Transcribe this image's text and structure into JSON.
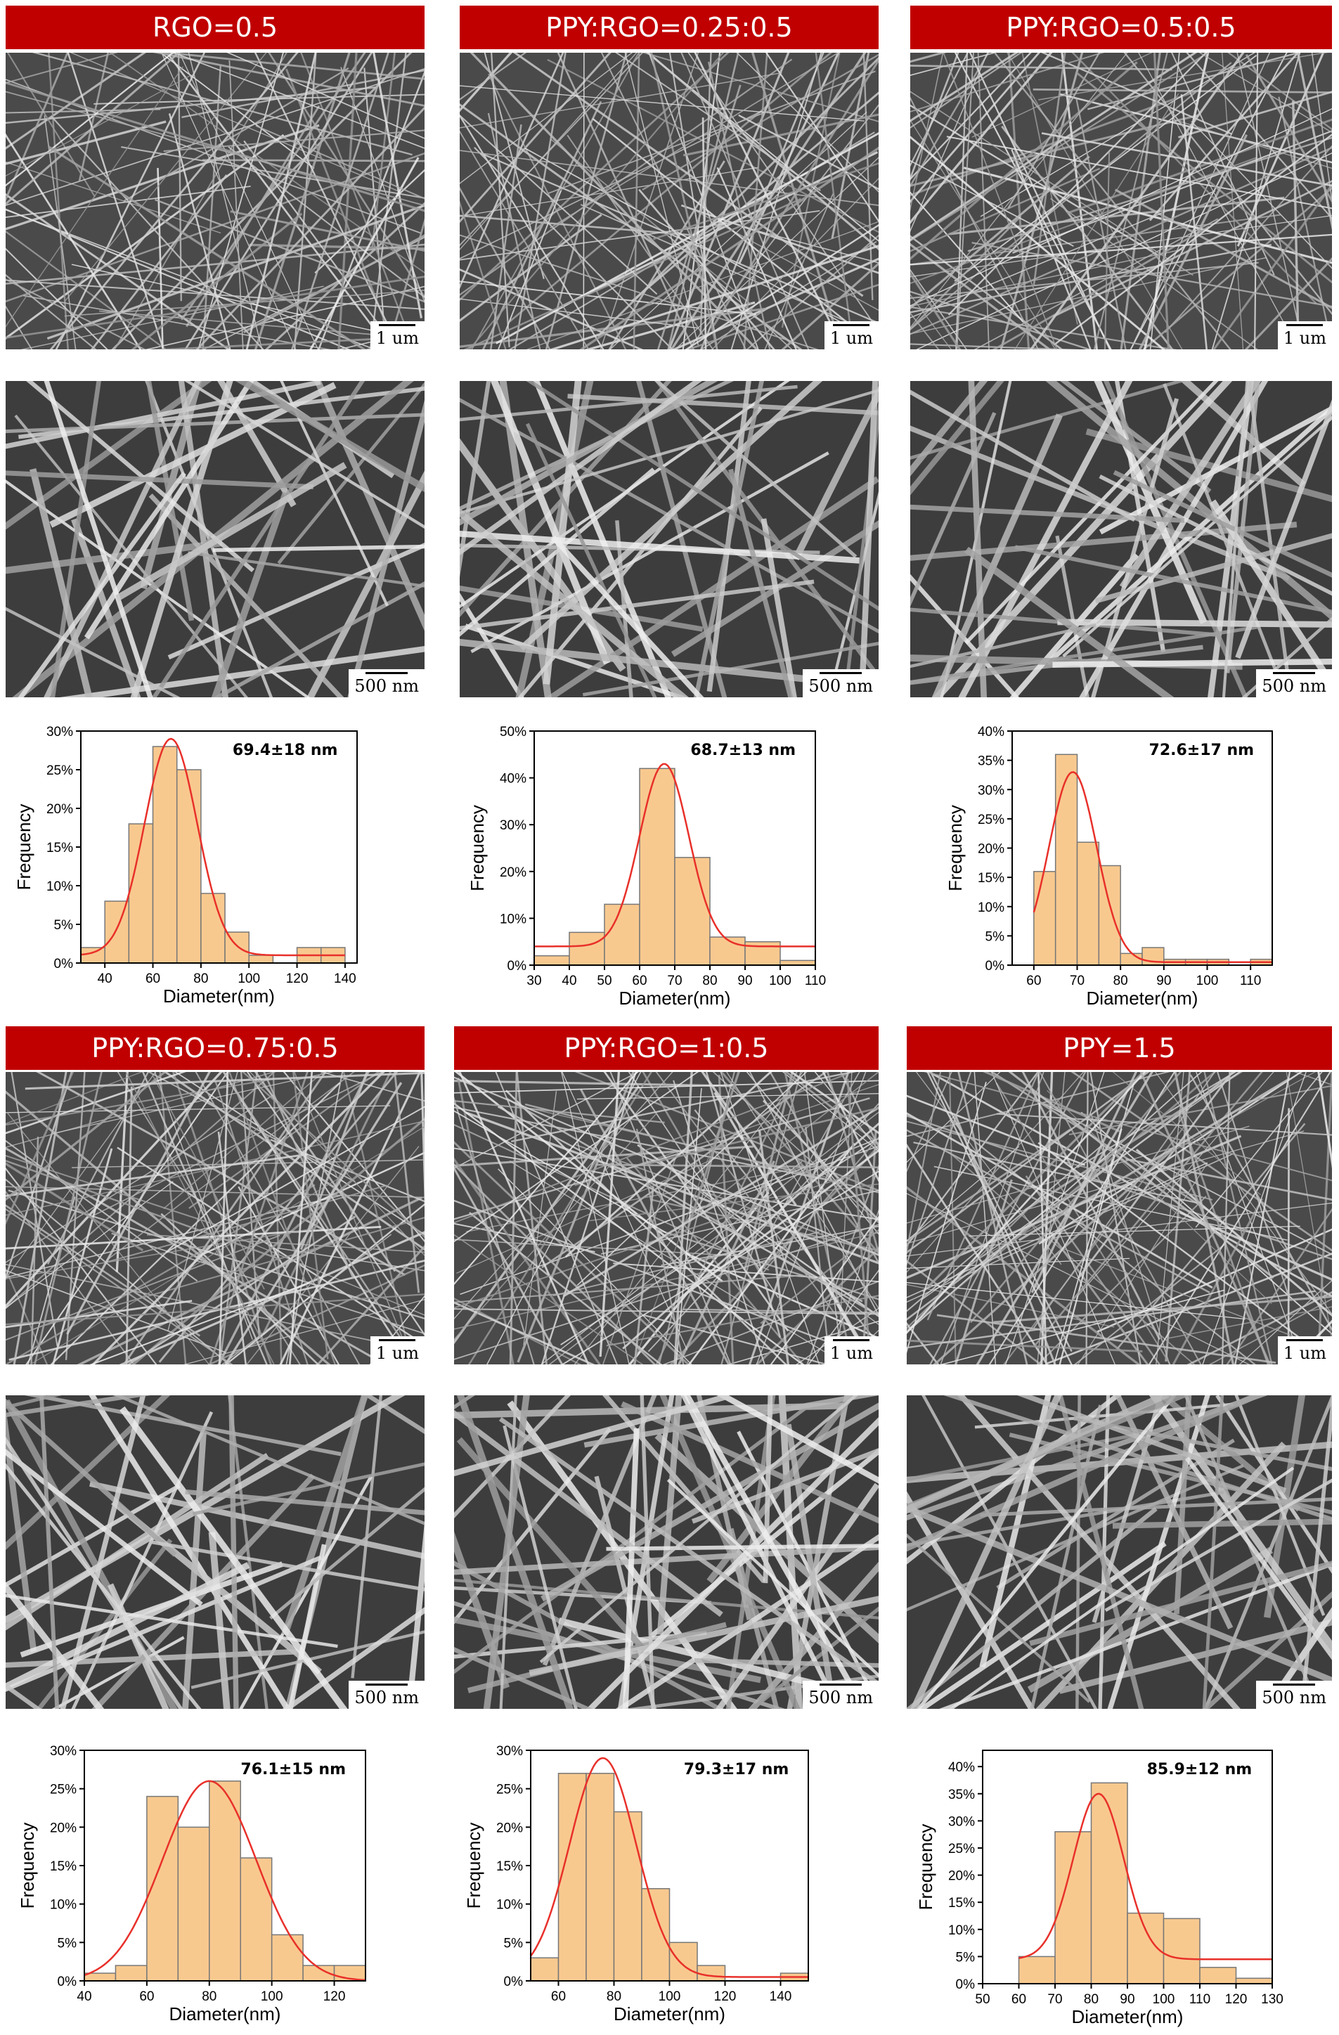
{
  "colors": {
    "title_bar": "#c00000",
    "bar_fill": "#f8c98f",
    "bar_stroke": "#777777",
    "fit_curve": "#e8302a"
  },
  "panels": [
    {
      "title": "RGO=0.5",
      "scale_top": "1 um",
      "scale_bottom": "500 nm",
      "density": 110,
      "seed": 11
    },
    {
      "title": "PPY:RGO=0.25:0.5",
      "scale_top": "1 um",
      "scale_bottom": "500 nm",
      "density": 120,
      "seed": 23
    },
    {
      "title": "PPY:RGO=0.5:0.5",
      "scale_top": "1 um",
      "scale_bottom": "500 nm",
      "density": 130,
      "seed": 37
    },
    {
      "title": "PPY:RGO=0.75:0.5",
      "scale_top": "1 um",
      "scale_bottom": "500 nm",
      "density": 130,
      "seed": 41
    },
    {
      "title": "PPY:RGO=1:0.5",
      "scale_top": "1 um",
      "scale_bottom": "500 nm",
      "density": 160,
      "seed": 53
    },
    {
      "title": "PPY=1.5",
      "scale_top": "1 um",
      "scale_bottom": "500 nm",
      "density": 140,
      "seed": 67
    }
  ],
  "chart_data": [
    {
      "type": "bar",
      "annotation": "69.4±18 nm",
      "xlabel": "Diameter(nm)",
      "ylabel": "Frequency",
      "xlim": [
        30,
        145
      ],
      "xticks": [
        40,
        60,
        80,
        100,
        120,
        140
      ],
      "ylim": [
        0,
        0.3
      ],
      "yticks": [
        "0%",
        "5%",
        "10%",
        "15%",
        "20%",
        "25%",
        "30%"
      ],
      "bin_width": 10,
      "x": [
        35,
        45,
        55,
        65,
        75,
        85,
        95,
        105,
        115,
        125,
        135
      ],
      "values": [
        0.02,
        0.08,
        0.18,
        0.28,
        0.25,
        0.09,
        0.04,
        0.01,
        0.0,
        0.02,
        0.02
      ],
      "fit": {
        "mean": 67.5,
        "sigma": 11,
        "peak": 0.29,
        "baseline": 0.01
      }
    },
    {
      "type": "bar",
      "annotation": "68.7±13 nm",
      "xlabel": "Diameter(nm)",
      "ylabel": "Frequency",
      "xlim": [
        30,
        110
      ],
      "xticks": [
        30,
        40,
        50,
        60,
        70,
        80,
        90,
        100,
        110
      ],
      "ylim": [
        0,
        0.5
      ],
      "yticks": [
        "0%",
        "10%",
        "20%",
        "30%",
        "40%",
        "50%"
      ],
      "bin_width": 10,
      "x": [
        35,
        45,
        55,
        65,
        75,
        85,
        95,
        105
      ],
      "values": [
        0.02,
        0.07,
        0.13,
        0.42,
        0.23,
        0.06,
        0.05,
        0.01
      ],
      "fit": {
        "mean": 67,
        "sigma": 7,
        "peak": 0.43,
        "baseline": 0.04
      }
    },
    {
      "type": "bar",
      "annotation": "72.6±17 nm",
      "xlabel": "Diameter(nm)",
      "ylabel": "Frequency",
      "xlim": [
        55,
        115
      ],
      "xticks": [
        60,
        70,
        80,
        90,
        100,
        110
      ],
      "ylim": [
        0,
        0.4
      ],
      "yticks": [
        "0%",
        "5%",
        "10%",
        "15%",
        "20%",
        "25%",
        "30%",
        "35%",
        "40%"
      ],
      "bin_width": 5,
      "x": [
        62.5,
        67.5,
        72.5,
        77.5,
        82.5,
        87.5,
        92.5,
        97.5,
        102.5,
        107.5,
        112.5
      ],
      "values": [
        0.16,
        0.36,
        0.21,
        0.17,
        0.02,
        0.03,
        0.01,
        0.01,
        0.01,
        0.0,
        0.01
      ],
      "fit": {
        "mean": 69,
        "sigma": 5.5,
        "peak": 0.33,
        "baseline": 0.005
      }
    },
    {
      "type": "bar",
      "annotation": "76.1±15 nm",
      "xlabel": "Diameter(nm)",
      "ylabel": "Frequency",
      "xlim": [
        40,
        130
      ],
      "xticks": [
        40,
        60,
        80,
        100,
        120
      ],
      "ylim": [
        0,
        0.3
      ],
      "yticks": [
        "0%",
        "5%",
        "10%",
        "15%",
        "20%",
        "25%",
        "30%"
      ],
      "bin_width": 10,
      "x": [
        45,
        55,
        65,
        75,
        85,
        95,
        105,
        115,
        125
      ],
      "values": [
        0.01,
        0.02,
        0.24,
        0.2,
        0.26,
        0.16,
        0.06,
        0.02,
        0.02
      ],
      "fit": {
        "mean": 80,
        "sigma": 15,
        "peak": 0.26,
        "baseline": 0.0
      }
    },
    {
      "type": "bar",
      "annotation": "79.3±17 nm",
      "xlabel": "Diameter(nm)",
      "ylabel": "Frequency",
      "xlim": [
        50,
        150
      ],
      "xticks": [
        60,
        80,
        100,
        120,
        140
      ],
      "ylim": [
        0,
        0.3
      ],
      "yticks": [
        "0%",
        "5%",
        "10%",
        "15%",
        "20%",
        "25%",
        "30%"
      ],
      "bin_width": 10,
      "x": [
        55,
        65,
        75,
        85,
        95,
        105,
        115,
        125,
        135,
        145
      ],
      "values": [
        0.03,
        0.27,
        0.27,
        0.22,
        0.12,
        0.05,
        0.02,
        0.0,
        0.0,
        0.01
      ],
      "fit": {
        "mean": 76,
        "sigma": 12,
        "peak": 0.29,
        "baseline": 0.005
      }
    },
    {
      "type": "bar",
      "annotation": "85.9±12 nm",
      "xlabel": "Diameter(nm)",
      "ylabel": "Frequency",
      "xlim": [
        50,
        130
      ],
      "xticks": [
        50,
        60,
        70,
        80,
        90,
        100,
        110,
        120,
        130
      ],
      "ylim": [
        0,
        0.43
      ],
      "yticks": [
        "0%",
        "5%",
        "10%",
        "15%",
        "20%",
        "25%",
        "30%",
        "35%",
        "40%"
      ],
      "bin_width": 10,
      "x": [
        65,
        75,
        85,
        95,
        105,
        115,
        125
      ],
      "values": [
        0.05,
        0.28,
        0.37,
        0.13,
        0.12,
        0.03,
        0.01
      ],
      "fit": {
        "mean": 82,
        "sigma": 7,
        "peak": 0.35,
        "baseline": 0.045
      }
    }
  ]
}
